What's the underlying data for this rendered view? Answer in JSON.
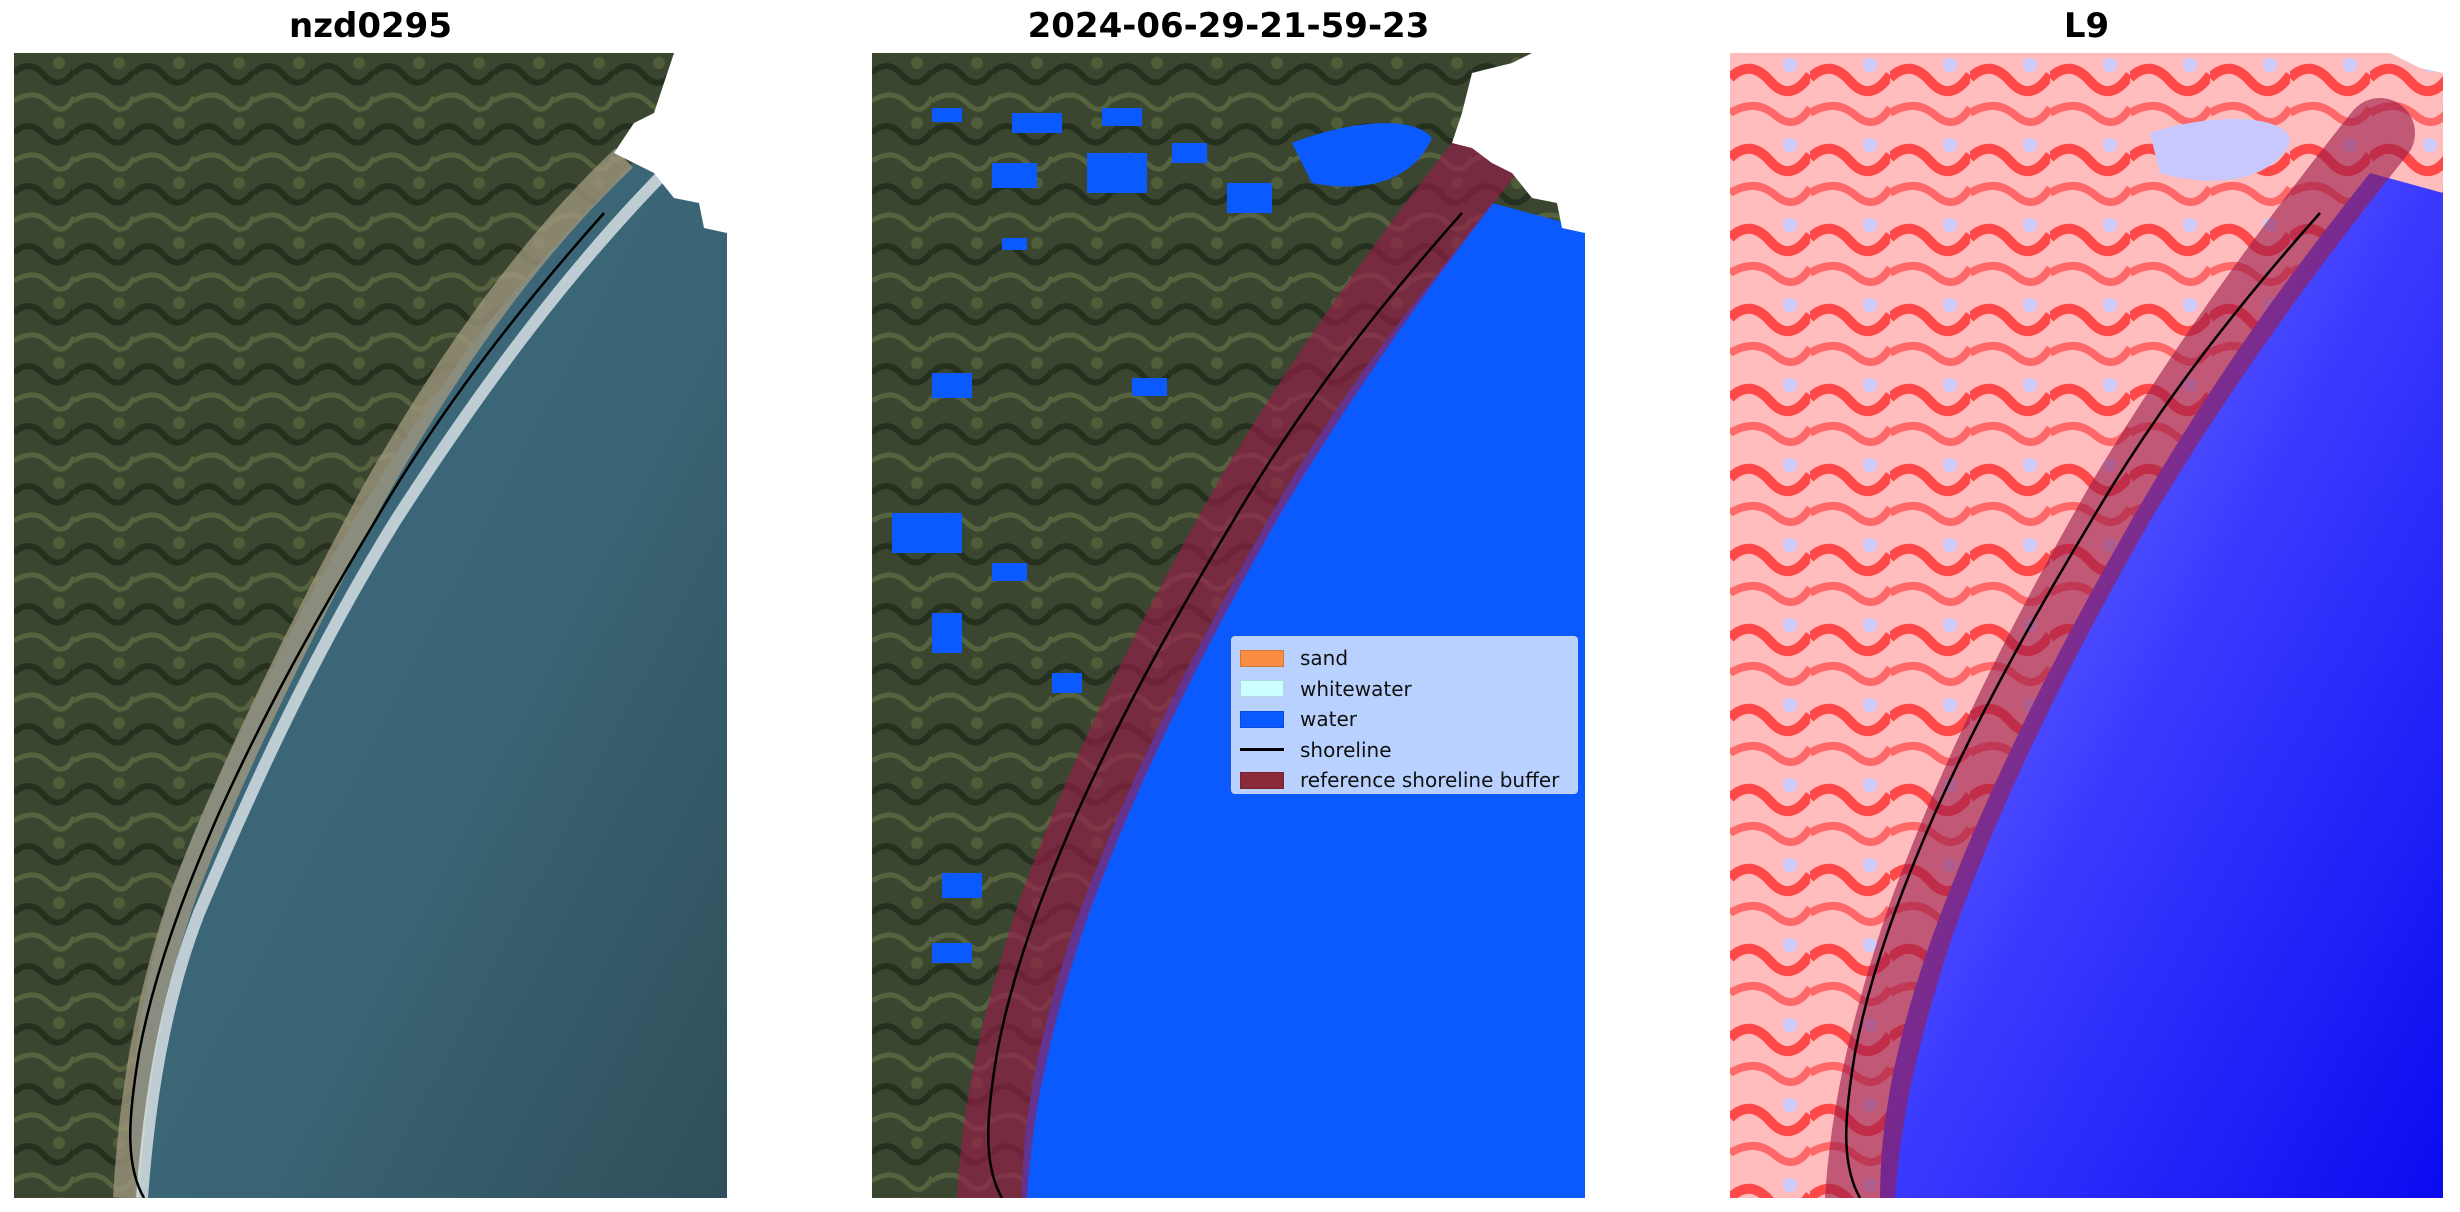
{
  "panels": [
    {
      "title": "nzd0295"
    },
    {
      "title": "2024-06-29-21-59-23"
    },
    {
      "title": "L9"
    }
  ],
  "legend": {
    "items": [
      {
        "label": "sand",
        "kind": "patch",
        "color": "#f98e43"
      },
      {
        "label": "whitewater",
        "kind": "patch",
        "color": "#ccffff"
      },
      {
        "label": "water",
        "kind": "patch",
        "color": "#0a5aff"
      },
      {
        "label": "shoreline",
        "kind": "line",
        "color": "#000000"
      },
      {
        "label": "reference shoreline buffer",
        "kind": "patch",
        "color": "#8b2a3a"
      }
    ]
  },
  "colors": {
    "land_dark": "#34402a",
    "land_mid": "#4e5a38",
    "sea": "#3d6778",
    "water_class": "#0a5aff",
    "buffer": "#9b1b4a",
    "index_red": "#ff2a2a",
    "index_blue": "#1010ff"
  }
}
